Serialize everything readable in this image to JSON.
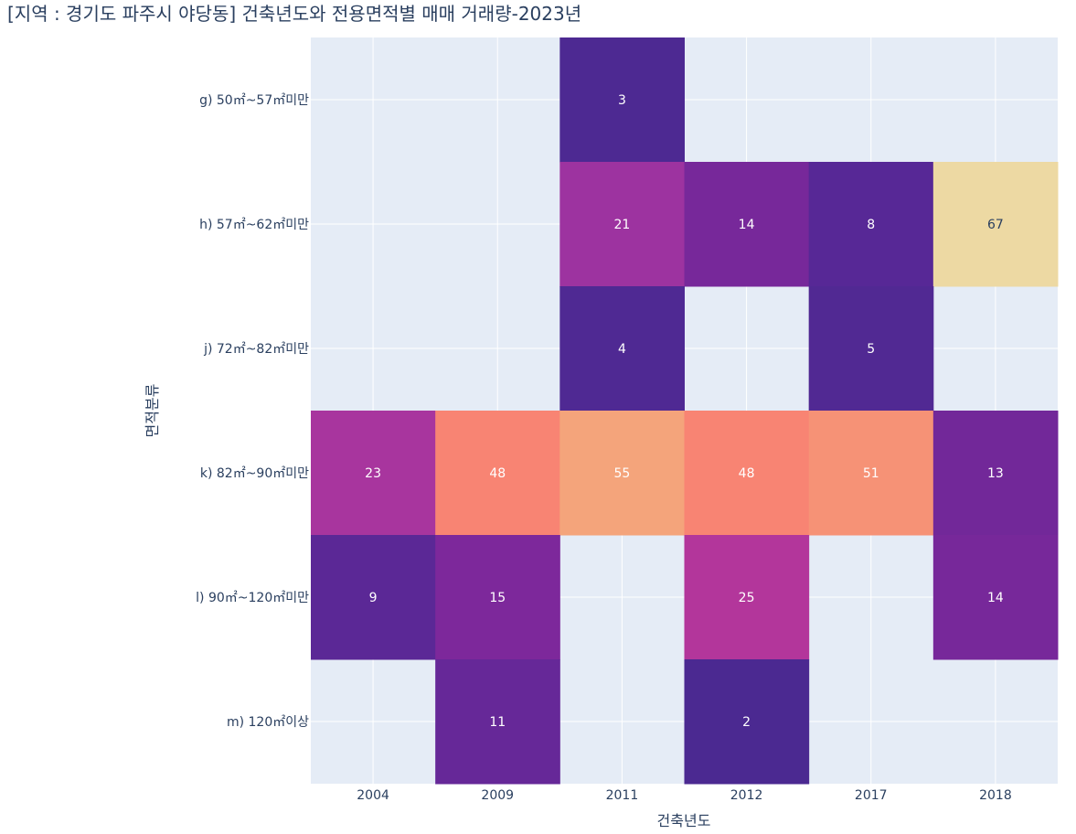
{
  "chart_data": {
    "type": "heatmap",
    "title": "[지역 : 경기도 파주시 야당동] 건축년도와 전용면적별 매매 거래량-2023년",
    "xlabel": "건축년도",
    "ylabel": "면적분류",
    "x": [
      "2004",
      "2009",
      "2011",
      "2012",
      "2017",
      "2018"
    ],
    "y": [
      "g) 50㎡~57㎡미만",
      "h) 57㎡~62㎡미만",
      "j) 72㎡~82㎡미만",
      "k) 82㎡~90㎡미만",
      "l) 90㎡~120㎡미만",
      "m) 120㎡이상"
    ],
    "z": [
      [
        null,
        null,
        3,
        null,
        null,
        null
      ],
      [
        null,
        null,
        21,
        14,
        8,
        67
      ],
      [
        null,
        null,
        4,
        null,
        5,
        null
      ],
      [
        23,
        48,
        55,
        48,
        51,
        13
      ],
      [
        9,
        15,
        null,
        25,
        null,
        14
      ],
      [
        null,
        11,
        null,
        2,
        null,
        null
      ]
    ],
    "zrange": [
      2,
      67
    ],
    "colorscale": "plasma-like (dark purple → magenta → salmon → pale yellow)",
    "plot_background": "#e5ecf6",
    "grid": true
  }
}
